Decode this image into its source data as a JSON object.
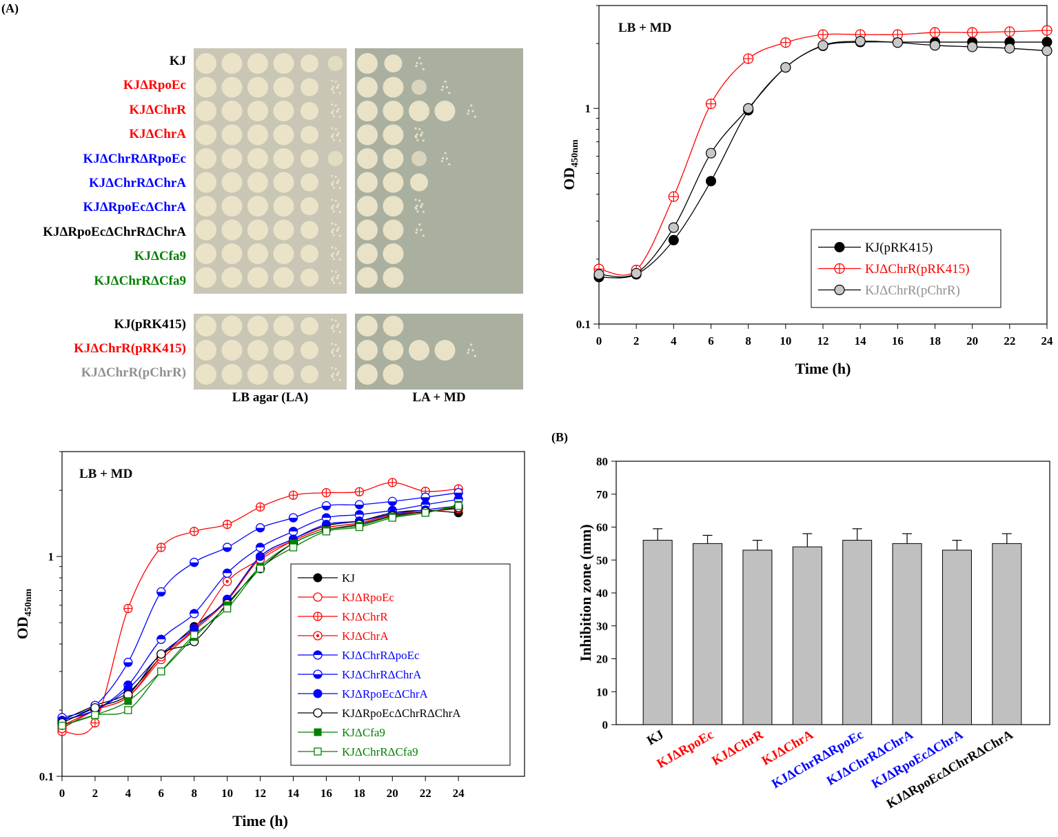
{
  "panel_labels": {
    "a": "(A)",
    "b": "(B)"
  },
  "colors": {
    "black": "#000000",
    "red": "#ff0000",
    "blue": "#0000ff",
    "green": "#008000",
    "gray": "#909090",
    "plate_la": "#c9c6b6",
    "plate_md": "#aab0a0",
    "colony": "#ece5c9",
    "bar": "#c0c0c0"
  },
  "spot_assay": {
    "strains_top": [
      {
        "label": "KJ",
        "color": "black",
        "la": [
          5,
          5,
          5,
          5,
          4,
          3
        ],
        "md": [
          5,
          4,
          1,
          0,
          0,
          0
        ]
      },
      {
        "label": "KJΔRpoEc",
        "color": "red",
        "la": [
          5,
          5,
          5,
          5,
          4,
          2
        ],
        "md": [
          5,
          5,
          3,
          1,
          0,
          0
        ]
      },
      {
        "label": "KJΔChrR",
        "color": "red",
        "la": [
          5,
          5,
          5,
          5,
          4,
          2
        ],
        "md": [
          5,
          5,
          5,
          5,
          1,
          0
        ]
      },
      {
        "label": "KJΔChrA",
        "color": "red",
        "la": [
          5,
          5,
          5,
          5,
          4,
          2
        ],
        "md": [
          5,
          5,
          2,
          0,
          0,
          0
        ]
      },
      {
        "label": "KJΔChrRΔRpoEc",
        "color": "blue",
        "la": [
          5,
          5,
          5,
          5,
          4,
          3
        ],
        "md": [
          5,
          5,
          3,
          1,
          0,
          0
        ]
      },
      {
        "label": "KJΔChrRΔChrA",
        "color": "blue",
        "la": [
          5,
          5,
          5,
          5,
          4,
          2
        ],
        "md": [
          5,
          5,
          4,
          0,
          0,
          0
        ]
      },
      {
        "label": "KJΔRpoEcΔChrA",
        "color": "blue",
        "la": [
          5,
          5,
          5,
          5,
          4,
          2
        ],
        "md": [
          5,
          5,
          2,
          0,
          0,
          0
        ]
      },
      {
        "label": "KJΔRpoEcΔChrRΔChrA",
        "color": "black",
        "la": [
          5,
          5,
          5,
          5,
          4,
          2
        ],
        "md": [
          5,
          5,
          1,
          0,
          0,
          0
        ]
      },
      {
        "label": "KJΔCfa9",
        "color": "green",
        "la": [
          5,
          5,
          5,
          5,
          4,
          2
        ],
        "md": [
          5,
          5,
          0,
          0,
          0,
          0
        ]
      },
      {
        "label": "KJΔChrRΔCfa9",
        "color": "green",
        "la": [
          5,
          5,
          5,
          5,
          4,
          2
        ],
        "md": [
          5,
          5,
          0,
          0,
          0,
          0
        ]
      }
    ],
    "strains_bottom": [
      {
        "label": "KJ(pRK415)",
        "color": "black",
        "la": [
          5,
          5,
          5,
          5,
          4,
          2
        ],
        "md": [
          5,
          5,
          0,
          0,
          0,
          0
        ]
      },
      {
        "label": "KJΔChrR(pRK415)",
        "color": "red",
        "la": [
          5,
          5,
          5,
          5,
          4,
          2
        ],
        "md": [
          5,
          5,
          5,
          5,
          1,
          0
        ]
      },
      {
        "label": "KJΔChrR(pChrR)",
        "color": "gray",
        "la": [
          5,
          5,
          5,
          5,
          4,
          2
        ],
        "md": [
          5,
          5,
          0,
          0,
          0,
          0
        ]
      }
    ],
    "caption_la": "LB agar (LA)",
    "caption_md": "LA + MD"
  },
  "chart_data": [
    {
      "type": "line",
      "title": "LB + MD",
      "xlabel": "Time (h)",
      "ylabel_main": "OD",
      "ylabel_sub": "450nm",
      "yscale": "log",
      "xlim": [
        0,
        24
      ],
      "ylim": [
        0.1,
        3
      ],
      "x_ticks": [
        0,
        2,
        4,
        6,
        8,
        10,
        12,
        14,
        16,
        18,
        20,
        22,
        24
      ],
      "y_ticks": [
        {
          "value": 0.1,
          "label": "0.1"
        },
        {
          "value": 1,
          "label": "1"
        }
      ],
      "x": [
        0,
        2,
        4,
        6,
        8,
        10,
        12,
        14,
        16,
        18,
        20,
        22,
        24
      ],
      "series": [
        {
          "name": "KJ(pRK415)",
          "color": "#000000",
          "marker": "filled-circle",
          "values": [
            0.165,
            0.17,
            0.245,
            0.46,
            0.98,
            1.55,
            1.95,
            2.03,
            2.03,
            2.03,
            2.03,
            2.03,
            2.03
          ]
        },
        {
          "name": "KJΔChrR(pRK415)",
          "color": "#ff0000",
          "marker": "circle-plus",
          "values": [
            0.18,
            0.178,
            0.39,
            1.05,
            1.7,
            2.02,
            2.2,
            2.2,
            2.2,
            2.25,
            2.25,
            2.27,
            2.3
          ]
        },
        {
          "name": "KJΔChrR(pChrR)",
          "color": "#909090",
          "marker": "gray-circle",
          "values": [
            0.17,
            0.172,
            0.28,
            0.62,
            1.0,
            1.55,
            1.96,
            2.05,
            2.02,
            1.96,
            1.93,
            1.9,
            1.85
          ]
        }
      ]
    },
    {
      "type": "line",
      "title": "LB + MD",
      "xlabel": "Time (h)",
      "ylabel_main": "OD",
      "ylabel_sub": "450nm",
      "yscale": "log",
      "xlim": [
        0,
        28
      ],
      "ylim": [
        0.1,
        3
      ],
      "x_ticks": [
        0,
        2,
        4,
        6,
        8,
        10,
        12,
        14,
        16,
        18,
        20,
        22,
        24
      ],
      "y_ticks": [
        {
          "value": 0.1,
          "label": "0.1"
        },
        {
          "value": 1,
          "label": "1"
        }
      ],
      "x": [
        0,
        2,
        4,
        6,
        8,
        10,
        12,
        14,
        16,
        18,
        20,
        22,
        24
      ],
      "series": [
        {
          "name": "KJ",
          "color": "#000000",
          "marker": "filled-circle",
          "values": [
            0.18,
            0.21,
            0.24,
            0.35,
            0.48,
            0.63,
            1.0,
            1.2,
            1.38,
            1.45,
            1.58,
            1.62,
            1.58
          ]
        },
        {
          "name": "KJΔRpoEc",
          "color": "#ff0000",
          "marker": "open-circle",
          "values": [
            0.17,
            0.2,
            0.23,
            0.34,
            0.46,
            0.63,
            0.98,
            1.18,
            1.35,
            1.42,
            1.55,
            1.6,
            1.65
          ]
        },
        {
          "name": "KJΔChrR",
          "color": "#ff0000",
          "marker": "circle-plus",
          "values": [
            0.16,
            0.175,
            0.58,
            1.1,
            1.3,
            1.4,
            1.68,
            1.9,
            1.95,
            1.97,
            2.17,
            1.98,
            2.03
          ]
        },
        {
          "name": "KJΔChrA",
          "color": "#ff0000",
          "marker": "circle-dot",
          "values": [
            0.165,
            0.2,
            0.23,
            0.35,
            0.47,
            0.77,
            0.97,
            1.18,
            1.35,
            1.42,
            1.55,
            1.6,
            1.65
          ]
        },
        {
          "name": "KJΔChrRΔpoEc",
          "color": "#0000ff",
          "marker": "half-circle",
          "values": [
            0.18,
            0.2,
            0.26,
            0.42,
            0.55,
            0.84,
            1.1,
            1.3,
            1.5,
            1.55,
            1.62,
            1.72,
            1.82
          ]
        },
        {
          "name": "KJΔChrRΔChrA",
          "color": "#0000ff",
          "marker": "half-circle-b",
          "values": [
            0.185,
            0.21,
            0.33,
            0.69,
            0.94,
            1.1,
            1.35,
            1.5,
            1.7,
            1.72,
            1.78,
            1.86,
            1.95
          ]
        },
        {
          "name": "KJΔRpoEcΔChrA",
          "color": "#0000ff",
          "marker": "filled-circle",
          "values": [
            0.18,
            0.2,
            0.25,
            0.36,
            0.47,
            0.64,
            1.0,
            1.2,
            1.4,
            1.45,
            1.56,
            1.63,
            1.7
          ]
        },
        {
          "name": "KJΔRpoEcΔChrRΔChrA",
          "color": "#000000",
          "marker": "open-circle",
          "values": [
            0.175,
            0.205,
            0.235,
            0.36,
            0.41,
            0.61,
            0.88,
            1.15,
            1.32,
            1.4,
            1.53,
            1.6,
            1.67
          ]
        },
        {
          "name": "KJΔCfa9",
          "color": "#008000",
          "marker": "filled-square",
          "values": [
            0.17,
            0.19,
            0.22,
            0.3,
            0.43,
            0.6,
            0.9,
            1.15,
            1.32,
            1.38,
            1.52,
            1.58,
            1.72
          ]
        },
        {
          "name": "KJΔChrRΔCfa9",
          "color": "#008000",
          "marker": "open-square",
          "values": [
            0.17,
            0.19,
            0.2,
            0.3,
            0.44,
            0.58,
            0.88,
            1.1,
            1.3,
            1.36,
            1.5,
            1.58,
            1.7
          ]
        }
      ]
    },
    {
      "type": "bar",
      "ylabel": "Inhibition zone (mm)",
      "ylim": [
        0,
        80
      ],
      "y_ticks": [
        0,
        10,
        20,
        30,
        40,
        50,
        60,
        70,
        80
      ],
      "categories": [
        "KJ",
        "KJΔRpoEc",
        "KJΔChrR",
        "KJΔChrA",
        "KJΔChrRΔRpoEc",
        "KJΔChrRΔChrA",
        "KJΔRpoEcΔChrA",
        "KJΔRpoEcΔChrRΔChrA"
      ],
      "category_colors": [
        "#000000",
        "#ff0000",
        "#ff0000",
        "#ff0000",
        "#0000ff",
        "#0000ff",
        "#0000ff",
        "#000000"
      ],
      "values": [
        56,
        55,
        53,
        54,
        56,
        55,
        53,
        55
      ],
      "errors": [
        3.5,
        2.5,
        3,
        4,
        3.5,
        3,
        3,
        3
      ]
    }
  ]
}
